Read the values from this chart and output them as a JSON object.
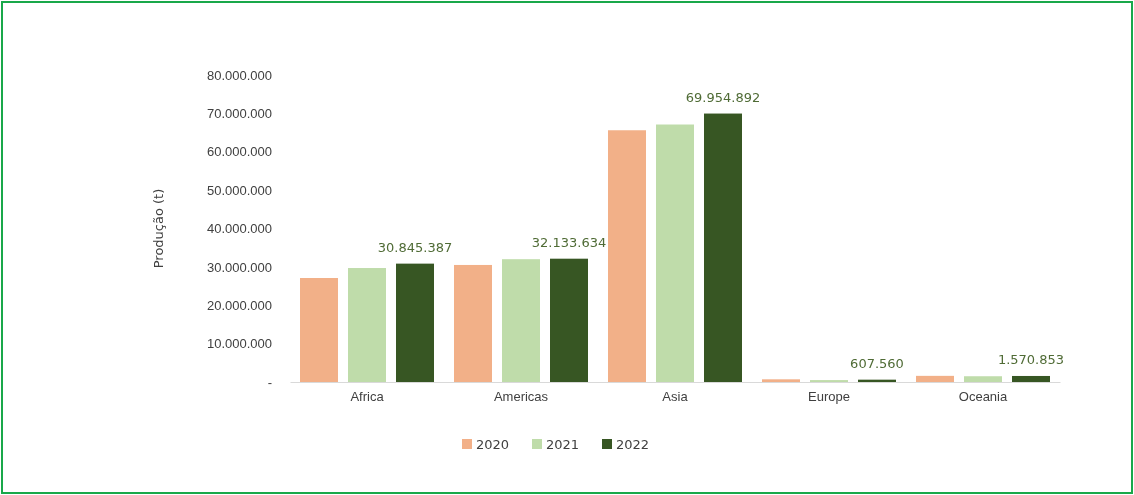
{
  "chart_data": {
    "type": "bar",
    "ylabel": "Produção (t)",
    "categories": [
      "Africa",
      "Americas",
      "Asia",
      "Europe",
      "Oceania"
    ],
    "series": [
      {
        "name": "2020",
        "color": "#f2b088",
        "values": [
          27100000,
          30500000,
          65600000,
          700000,
          1600000
        ]
      },
      {
        "name": "2021",
        "color": "#bfdcaa",
        "values": [
          29700000,
          32000000,
          67100000,
          500000,
          1500000
        ]
      },
      {
        "name": "2022",
        "color": "#375623",
        "values": [
          30845387,
          32133634,
          69954892,
          607560,
          1570853
        ],
        "value_labels": [
          "30.845.387",
          "32.133.634",
          "69.954.892",
          "607.560",
          "1.570.853"
        ]
      }
    ],
    "ylim": [
      0,
      80000000
    ],
    "yticks": [
      {
        "value": 0,
        "label": "-"
      },
      {
        "value": 10000000,
        "label": "10.000.000"
      },
      {
        "value": 20000000,
        "label": "20.000.000"
      },
      {
        "value": 30000000,
        "label": "30.000.000"
      },
      {
        "value": 40000000,
        "label": "40.000.000"
      },
      {
        "value": 50000000,
        "label": "50.000.000"
      },
      {
        "value": 60000000,
        "label": "60.000.000"
      },
      {
        "value": 70000000,
        "label": "70.000.000"
      },
      {
        "value": 80000000,
        "label": "80.000.000"
      }
    ],
    "grid": false,
    "legend": "bottom"
  }
}
